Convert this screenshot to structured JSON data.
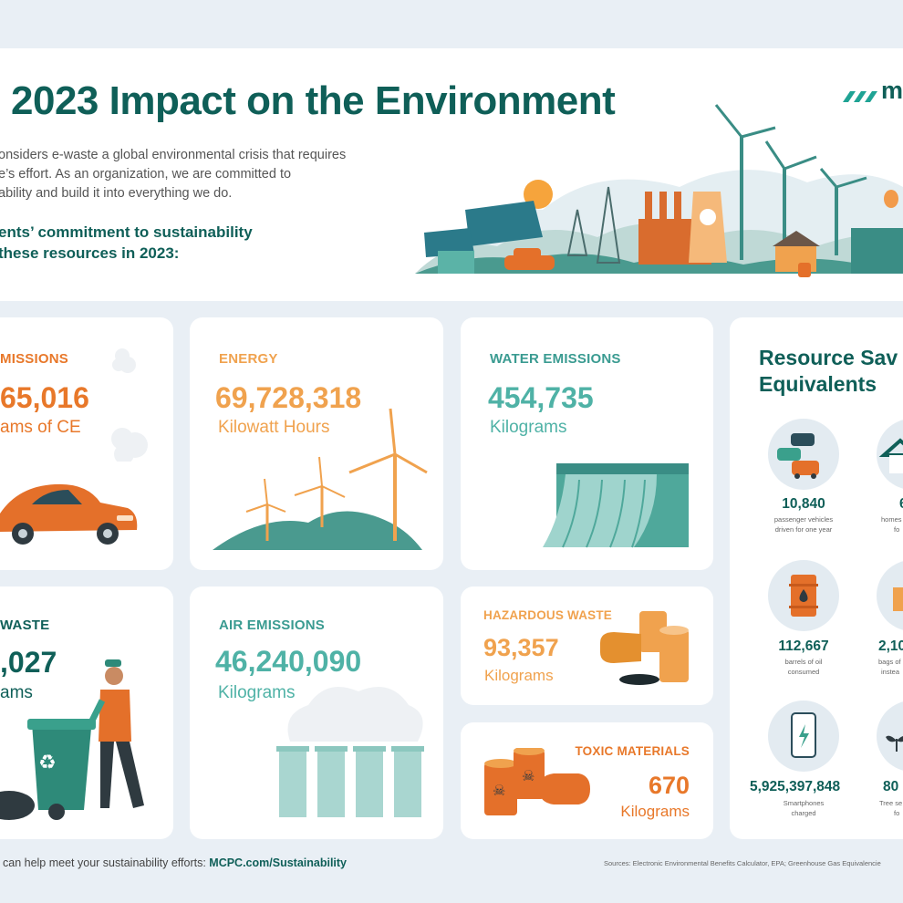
{
  "header": {
    "title": "2023 Impact on the Environment",
    "logo_text": "m",
    "intro_lines": [
      "onsiders e-waste a global environmental crisis that requires",
      "e’s effort. As an organization, we are committed to",
      "ability and build it into everything we do."
    ],
    "commitment_lines": [
      "ents’ commitment to sustainability",
      " these resources in 2023:"
    ]
  },
  "cards": {
    "emissions": {
      "label": "MISSIONS",
      "value": "65,016",
      "unit": "ams of CE"
    },
    "energy": {
      "label": "ENERGY",
      "value": "69,728,318",
      "unit": "Kilowatt Hours"
    },
    "water": {
      "label": "WATER EMISSIONS",
      "value": "454,735",
      "unit": "Kilograms"
    },
    "waste": {
      "label": "WASTE",
      "value": ",027",
      "unit": "ams"
    },
    "air": {
      "label": "AIR EMISSIONS",
      "value": "46,240,090",
      "unit": "Kilograms"
    },
    "hazardous": {
      "label": "HAZARDOUS WASTE",
      "value": "93,357",
      "unit": "Kilograms"
    },
    "toxic": {
      "label": "TOXIC MATERIALS",
      "value": "670",
      "unit": "Kilograms"
    }
  },
  "equivalents": {
    "title_line1": "Resource Sav",
    "title_line2": "Equivalents",
    "items": [
      {
        "value": "10,840",
        "desc_line1": "passenger vehicles",
        "desc_line2": "driven for one year",
        "icon": "cars-icon"
      },
      {
        "value": "6",
        "desc_line1": "homes",
        "desc_line2": "fo",
        "icon": "house-icon"
      },
      {
        "value": "112,667",
        "desc_line1": "barrels of oil",
        "desc_line2": "consumed",
        "icon": "oil-barrel-icon"
      },
      {
        "value": "2,10",
        "desc_line1": "bags of",
        "desc_line2": "instea",
        "icon": "bag-icon"
      },
      {
        "value": "5,925,397,848",
        "desc_line1": "Smartphones",
        "desc_line2": "charged",
        "icon": "smartphone-icon"
      },
      {
        "value": "80",
        "desc_line1": "Tree se",
        "desc_line2": "fo",
        "icon": "seedling-icon"
      }
    ]
  },
  "footer": {
    "text": "can help meet your sustainability efforts: ",
    "link": "MCPC.com/Sustainability",
    "sources": "Sources: Electronic Environmental Benefits Calculator, EPA; Greenhouse Gas Equivalencie"
  },
  "colors": {
    "dark_teal": "#0f5f58",
    "teal": "#4fb2a6",
    "orange": "#e8782a",
    "light_orange": "#f0a24e",
    "background": "#e9eff5"
  }
}
